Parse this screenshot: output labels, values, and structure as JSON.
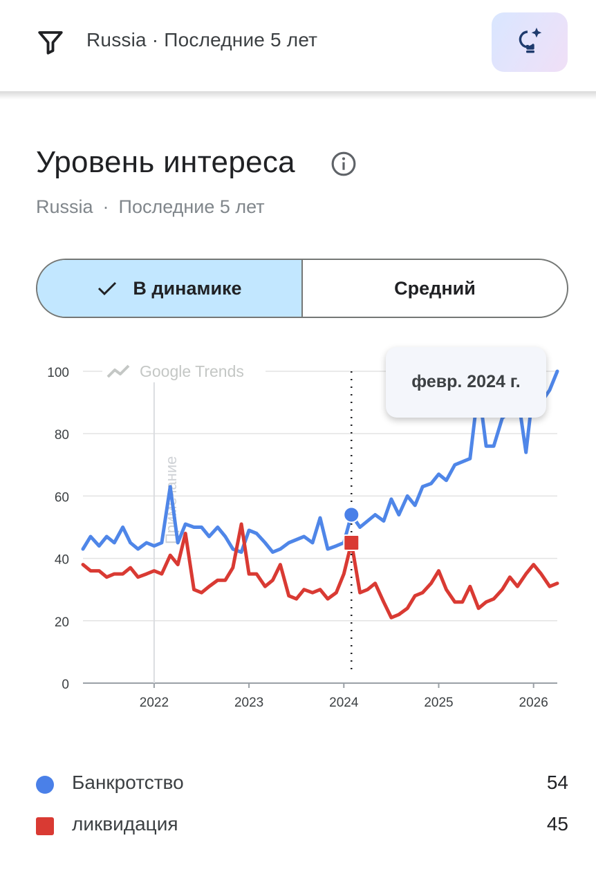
{
  "header": {
    "filter_label": "Russia · Последние 5 лет",
    "filter_icon": "filter-icon",
    "idea_icon": "lightbulb-sparkle-icon"
  },
  "card": {
    "title": "Уровень интереса",
    "info_icon": "info-icon",
    "region": "Russia",
    "separator": "·",
    "period": "Последние 5 лет"
  },
  "toggle": {
    "active_label": "В динамике",
    "inactive_label": "Средний"
  },
  "tooltip": {
    "date": "февр. 2024 г."
  },
  "chart_data": {
    "type": "line",
    "watermark": "Google Trends",
    "annotation": "Примечание",
    "x_ticks": [
      "2022",
      "2023",
      "2024",
      "2025",
      "2026"
    ],
    "y_ticks": [
      "0",
      "20",
      "40",
      "60",
      "80",
      "100"
    ],
    "ylim": [
      0,
      100
    ],
    "xlim": [
      2021.25,
      2026.25
    ],
    "highlight_x": 2024.08,
    "series": [
      {
        "name": "Банкротство",
        "color": "#4f86e8",
        "values": [
          [
            2021.25,
            43
          ],
          [
            2021.33,
            47
          ],
          [
            2021.42,
            44
          ],
          [
            2021.5,
            47
          ],
          [
            2021.58,
            45
          ],
          [
            2021.67,
            50
          ],
          [
            2021.75,
            45
          ],
          [
            2021.83,
            43
          ],
          [
            2021.92,
            45
          ],
          [
            2022.0,
            44
          ],
          [
            2022.08,
            45
          ],
          [
            2022.17,
            63
          ],
          [
            2022.25,
            45
          ],
          [
            2022.33,
            51
          ],
          [
            2022.42,
            50
          ],
          [
            2022.5,
            50
          ],
          [
            2022.58,
            47
          ],
          [
            2022.67,
            50
          ],
          [
            2022.75,
            47
          ],
          [
            2022.83,
            43
          ],
          [
            2022.92,
            42
          ],
          [
            2023.0,
            49
          ],
          [
            2023.08,
            48
          ],
          [
            2023.17,
            45
          ],
          [
            2023.25,
            42
          ],
          [
            2023.33,
            43
          ],
          [
            2023.42,
            45
          ],
          [
            2023.5,
            46
          ],
          [
            2023.58,
            47
          ],
          [
            2023.67,
            45
          ],
          [
            2023.75,
            53
          ],
          [
            2023.83,
            43
          ],
          [
            2023.92,
            44
          ],
          [
            2024.0,
            45
          ],
          [
            2024.08,
            54
          ],
          [
            2024.17,
            50
          ],
          [
            2024.25,
            52
          ],
          [
            2024.33,
            54
          ],
          [
            2024.42,
            52
          ],
          [
            2024.5,
            59
          ],
          [
            2024.58,
            54
          ],
          [
            2024.67,
            60
          ],
          [
            2024.75,
            57
          ],
          [
            2024.83,
            63
          ],
          [
            2024.92,
            64
          ],
          [
            2025.0,
            67
          ],
          [
            2025.08,
            65
          ],
          [
            2025.17,
            70
          ],
          [
            2025.25,
            71
          ],
          [
            2025.33,
            72
          ],
          [
            2025.42,
            95
          ],
          [
            2025.5,
            76
          ],
          [
            2025.58,
            76
          ],
          [
            2025.67,
            85
          ],
          [
            2025.75,
            87
          ],
          [
            2025.83,
            93
          ],
          [
            2025.92,
            74
          ],
          [
            2026.0,
            95
          ],
          [
            2026.08,
            90
          ],
          [
            2026.17,
            94
          ],
          [
            2026.25,
            100
          ]
        ]
      },
      {
        "name": "ликвидация",
        "color": "#d93a33",
        "values": [
          [
            2021.25,
            38
          ],
          [
            2021.33,
            36
          ],
          [
            2021.42,
            36
          ],
          [
            2021.5,
            34
          ],
          [
            2021.58,
            35
          ],
          [
            2021.67,
            35
          ],
          [
            2021.75,
            37
          ],
          [
            2021.83,
            34
          ],
          [
            2021.92,
            35
          ],
          [
            2022.0,
            36
          ],
          [
            2022.08,
            35
          ],
          [
            2022.17,
            41
          ],
          [
            2022.25,
            38
          ],
          [
            2022.33,
            48
          ],
          [
            2022.42,
            30
          ],
          [
            2022.5,
            29
          ],
          [
            2022.58,
            31
          ],
          [
            2022.67,
            33
          ],
          [
            2022.75,
            33
          ],
          [
            2022.83,
            37
          ],
          [
            2022.92,
            51
          ],
          [
            2023.0,
            35
          ],
          [
            2023.08,
            35
          ],
          [
            2023.17,
            31
          ],
          [
            2023.25,
            33
          ],
          [
            2023.33,
            38
          ],
          [
            2023.42,
            28
          ],
          [
            2023.5,
            27
          ],
          [
            2023.58,
            30
          ],
          [
            2023.67,
            29
          ],
          [
            2023.75,
            30
          ],
          [
            2023.83,
            27
          ],
          [
            2023.92,
            29
          ],
          [
            2024.0,
            35
          ],
          [
            2024.08,
            45
          ],
          [
            2024.17,
            29
          ],
          [
            2024.25,
            30
          ],
          [
            2024.33,
            32
          ],
          [
            2024.42,
            26
          ],
          [
            2024.5,
            21
          ],
          [
            2024.58,
            22
          ],
          [
            2024.67,
            24
          ],
          [
            2024.75,
            28
          ],
          [
            2024.83,
            29
          ],
          [
            2024.92,
            32
          ],
          [
            2025.0,
            36
          ],
          [
            2025.08,
            30
          ],
          [
            2025.17,
            26
          ],
          [
            2025.25,
            26
          ],
          [
            2025.33,
            31
          ],
          [
            2025.42,
            24
          ],
          [
            2025.5,
            26
          ],
          [
            2025.58,
            27
          ],
          [
            2025.67,
            30
          ],
          [
            2025.75,
            34
          ],
          [
            2025.83,
            31
          ],
          [
            2025.92,
            35
          ],
          [
            2026.0,
            38
          ],
          [
            2026.08,
            35
          ],
          [
            2026.17,
            31
          ],
          [
            2026.25,
            32
          ]
        ]
      }
    ]
  },
  "legend": [
    {
      "label": "Банкротство",
      "value": "54",
      "color": "#4a80e8",
      "marker": "circle"
    },
    {
      "label": "ликвидация",
      "value": "45",
      "color": "#d93a33",
      "marker": "square"
    }
  ]
}
